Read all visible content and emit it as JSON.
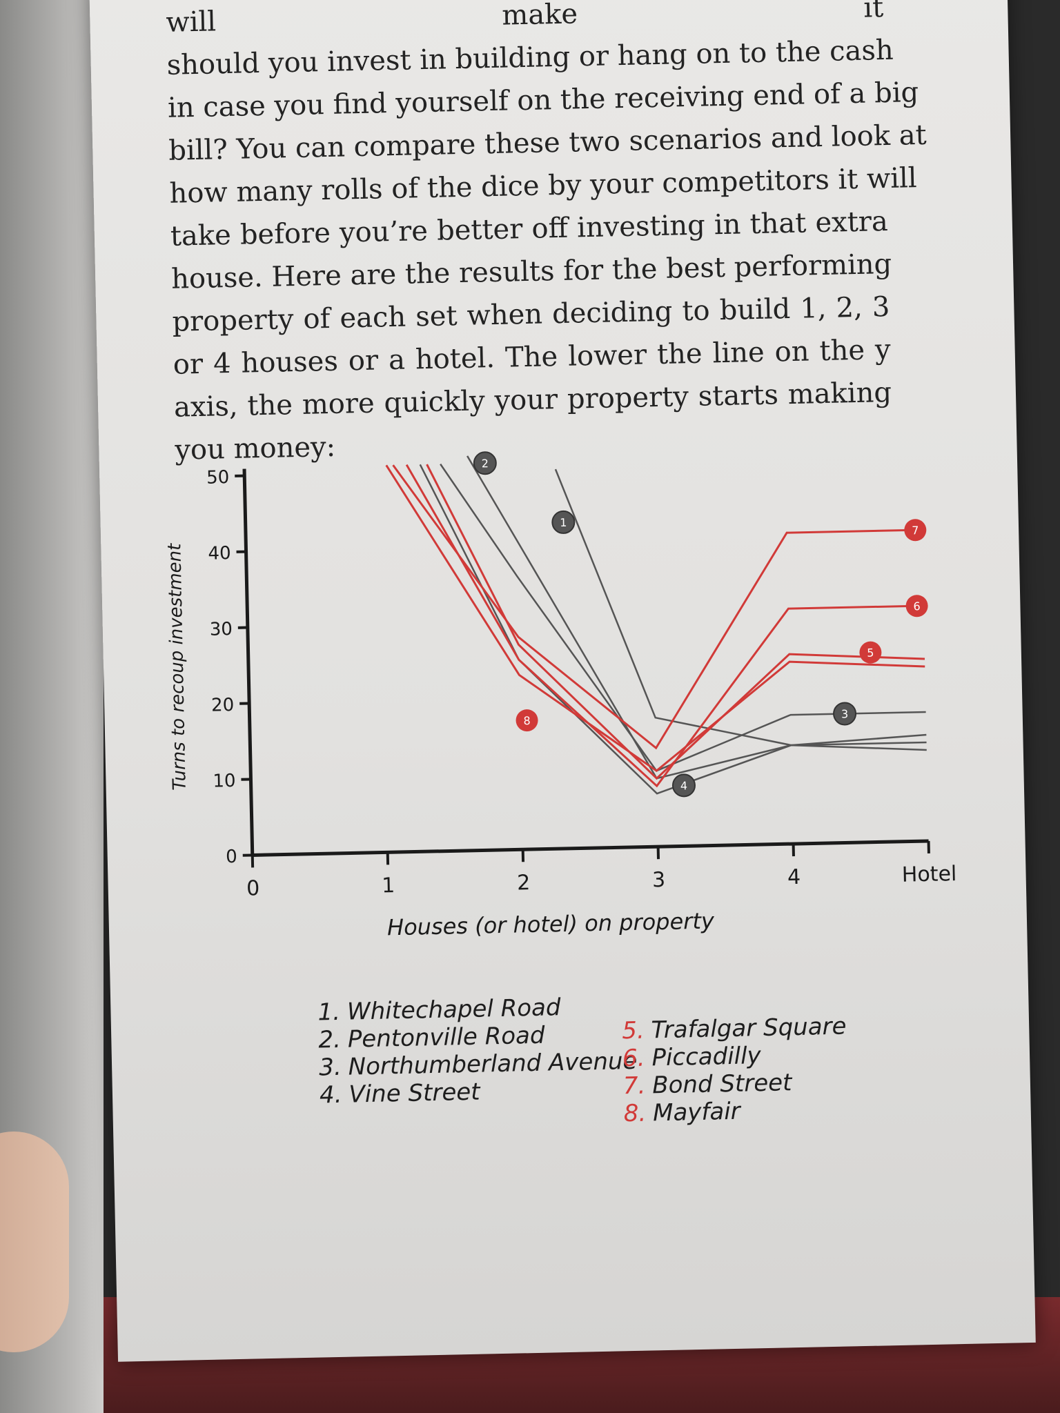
{
  "paragraph": {
    "lines": [
      "will make it",
      "should you invest in building or hang on to the cash",
      "in case you find yourself on the receiving end of a big",
      "bill? You can compare these two scenarios and look at",
      "how many rolls of the dice by your competitors it will",
      "take before you’re better off investing in that extra",
      "house. Here are the results for the best performing",
      "property of each set when deciding to build 1, 2, 3",
      "or 4 houses or a hotel. The lower the line on the y",
      "axis, the more quickly your property starts making",
      "you money:"
    ]
  },
  "chart_data": {
    "type": "line",
    "xlabel": "Houses (or hotel) on property",
    "ylabel": "Turns to recoup investment",
    "x_ticks": [
      "0",
      "1",
      "2",
      "3",
      "4",
      "Hotel"
    ],
    "y_ticks": [
      "0",
      "10",
      "20",
      "30",
      "40",
      "50"
    ],
    "ylim": [
      0,
      50
    ],
    "xlim": [
      0,
      5
    ],
    "grid": false,
    "colors": {
      "grey": "#555555",
      "red": "#d13a38"
    },
    "series": [
      {
        "name": "Whitechapel Road",
        "marker": "1",
        "color": "grey",
        "x": [
          2.3,
          3,
          4,
          5
        ],
        "y": [
          50,
          17,
          13,
          13
        ]
      },
      {
        "name": "Pentonville Road",
        "marker": "2",
        "color": "grey",
        "x": [
          1.65,
          3,
          4,
          5
        ],
        "y": [
          52,
          9,
          13,
          14
        ]
      },
      {
        "name": "Northumberland Avenue",
        "marker": "3",
        "color": "grey",
        "x": [
          1.45,
          2,
          3,
          4,
          5
        ],
        "y": [
          51,
          36,
          10,
          17,
          17
        ]
      },
      {
        "name": "Vine Street",
        "marker": "4",
        "color": "grey",
        "x": [
          1.3,
          2,
          3,
          4,
          5
        ],
        "y": [
          51,
          25,
          7,
          13,
          12
        ]
      },
      {
        "name": "Trafalgar Square",
        "marker": "5",
        "color": "red",
        "x": [
          1.35,
          2,
          3,
          4,
          5
        ],
        "y": [
          51,
          27,
          9,
          25,
          24
        ]
      },
      {
        "name": "Piccadilly",
        "marker": "6",
        "color": "red",
        "x": [
          1.2,
          2,
          3,
          4,
          5
        ],
        "y": [
          51,
          25,
          8,
          31,
          31
        ]
      },
      {
        "name": "Bond Street",
        "marker": "7",
        "color": "red",
        "x": [
          1.1,
          2,
          3,
          4,
          5
        ],
        "y": [
          51,
          28,
          13,
          41,
          41
        ]
      },
      {
        "name": "Mayfair",
        "marker": "8",
        "color": "red",
        "x": [
          1.05,
          2,
          3,
          4,
          5
        ],
        "y": [
          51,
          23,
          10,
          24,
          23
        ]
      }
    ]
  },
  "legend": {
    "left": [
      {
        "num": "1.",
        "label": "Whitechapel Road"
      },
      {
        "num": "2.",
        "label": "Pentonville Road"
      },
      {
        "num": "3.",
        "label": "Northumberland Avenue"
      },
      {
        "num": "4.",
        "label": "Vine Street"
      }
    ],
    "right": [
      {
        "num": "5.",
        "label": "Trafalgar Square"
      },
      {
        "num": "6.",
        "label": "Piccadilly"
      },
      {
        "num": "7.",
        "label": "Bond Street"
      },
      {
        "num": "8.",
        "label": "Mayfair"
      }
    ]
  }
}
